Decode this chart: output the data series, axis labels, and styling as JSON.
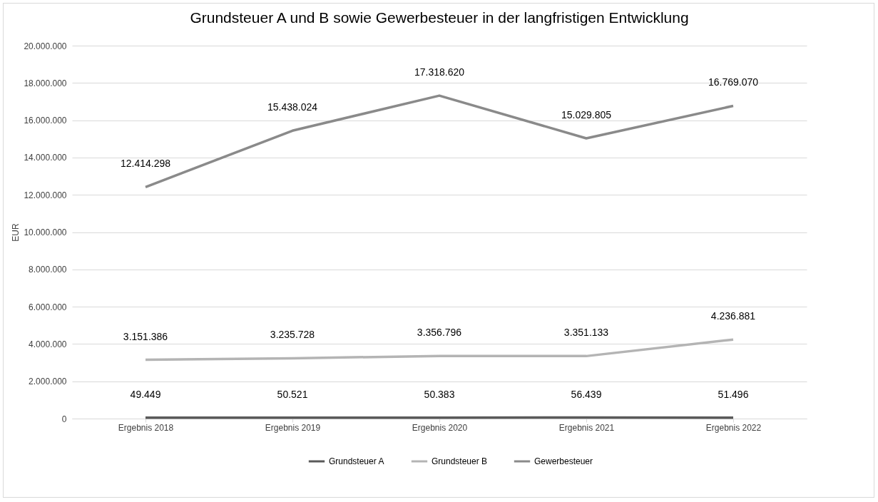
{
  "chart_data": {
    "type": "line",
    "title": "Grundsteuer A und B sowie Gewerbesteuer in der langfristigen Entwicklung",
    "ylabel": "EUR",
    "categories": [
      "Ergebnis 2018",
      "Ergebnis 2019",
      "Ergebnis 2020",
      "Ergebnis 2021",
      "Ergebnis 2022"
    ],
    "series": [
      {
        "name": "Grundsteuer A",
        "color": "#5a5a5a",
        "values": [
          49449,
          50521,
          50383,
          56439,
          51496
        ],
        "value_labels": [
          "49.449",
          "50.521",
          "50.383",
          "56.439",
          "51.496"
        ]
      },
      {
        "name": "Grundsteuer B",
        "color": "#b4b4b4",
        "values": [
          3151386,
          3235728,
          3356796,
          3351133,
          4236881
        ],
        "value_labels": [
          "3.151.386",
          "3.235.728",
          "3.356.796",
          "3.351.133",
          "4.236.881"
        ]
      },
      {
        "name": "Gewerbesteuer",
        "color": "#8a8a8a",
        "values": [
          12414298,
          15438024,
          17318620,
          15029805,
          16769070
        ],
        "value_labels": [
          "12.414.298",
          "15.438.024",
          "17.318.620",
          "15.029.805",
          "16.769.070"
        ]
      }
    ],
    "ylim": [
      0,
      20000000
    ],
    "yticks": [
      0,
      {
        "value": 2000000,
        "label": "2.000.000"
      },
      {
        "value": 4000000,
        "label": "4.000.000"
      },
      {
        "value": 6000000,
        "label": "6.000.000"
      },
      {
        "value": 8000000,
        "label": "8.000.000"
      },
      {
        "value": 10000000,
        "label": "10.000.000"
      },
      {
        "value": 12000000,
        "label": "12.000.000"
      },
      {
        "value": 14000000,
        "label": "14.000.000"
      },
      {
        "value": 16000000,
        "label": "16.000.000"
      },
      {
        "value": 18000000,
        "label": "18.000.000"
      },
      {
        "value": 20000000,
        "label": "20.000.000"
      }
    ],
    "grid": "y",
    "legend": "bottom",
    "marker": "none",
    "line_style": "solid"
  }
}
